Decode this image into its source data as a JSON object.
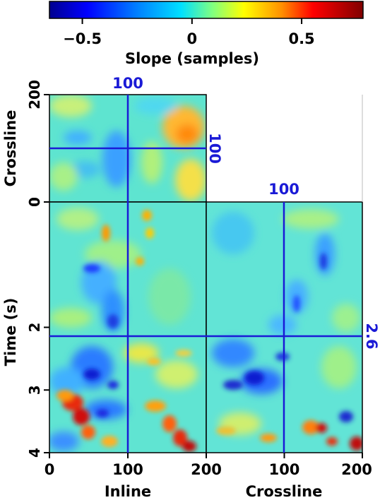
{
  "colorbar": {
    "title": "Slope (samples)",
    "ticks": [
      {
        "value": -0.5,
        "label": "−0.5"
      },
      {
        "value": 0,
        "label": "0"
      },
      {
        "value": 0.5,
        "label": "0.5"
      }
    ],
    "range": [
      -0.65,
      0.78
    ],
    "colors": [
      "#00008f",
      "#0000ff",
      "#0060ff",
      "#00bfff",
      "#40ffbf",
      "#9fff60",
      "#ffff00",
      "#ffbf00",
      "#ff6000",
      "#ff0000",
      "#bf0000",
      "#800000"
    ]
  },
  "panels": {
    "top": {
      "ylabel": "Crossline",
      "yticks": [
        {
          "value": 0,
          "label": "0"
        },
        {
          "value": 200,
          "label": "200"
        }
      ],
      "crosshair_x_label": "100",
      "crosshair_y_label": "100"
    },
    "front": {
      "ylabel": "Time (s)",
      "yticks": [
        {
          "value": 4,
          "label": "4"
        },
        {
          "value": 3,
          "label": "3"
        },
        {
          "value": 2,
          "label": "2"
        },
        {
          "value": 0,
          "label": "0"
        }
      ],
      "xlabel": "Inline",
      "xticks": [
        {
          "value": 0,
          "label": "0"
        },
        {
          "value": 100,
          "label": "100"
        },
        {
          "value": 200,
          "label": "200"
        }
      ]
    },
    "side": {
      "xlabel": "Crossline",
      "xticks": [
        {
          "value": 100,
          "label": "100"
        },
        {
          "value": 200,
          "label": "200"
        }
      ],
      "crosshair_x_label": "100",
      "crosshair_time_label": "2.6"
    }
  },
  "crosshair": {
    "inline": 100,
    "crossline": 100,
    "time": 2.6,
    "color": "#1a1ad6"
  }
}
